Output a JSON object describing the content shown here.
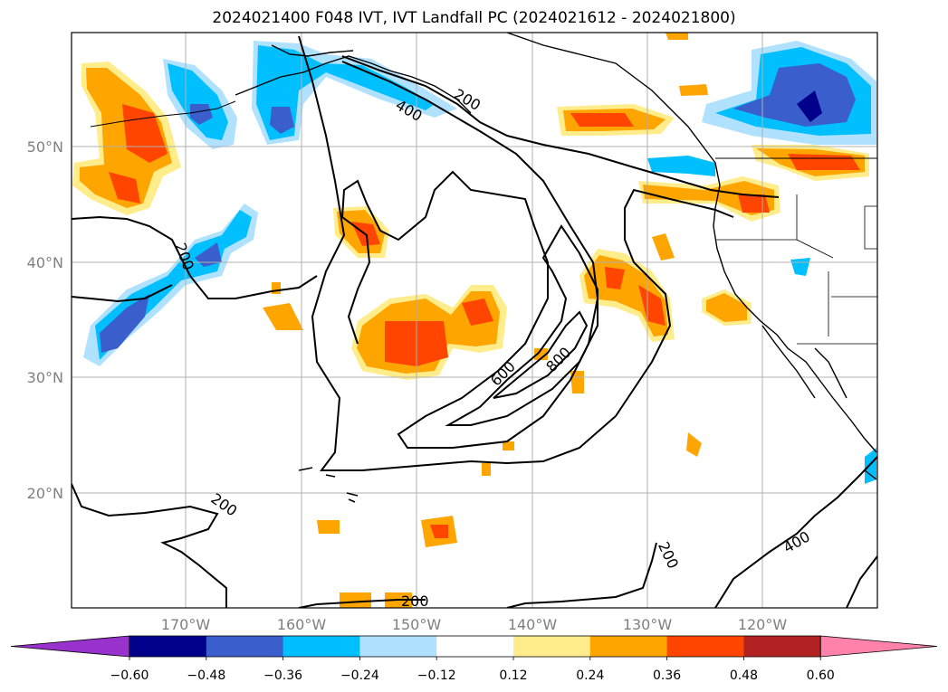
{
  "title": "2024021400 F048 IVT, IVT Landfall PC (2024021612 - 2024021800)",
  "lat_labels": [
    "50°N",
    "40°N",
    "30°N",
    "20°N"
  ],
  "lon_labels": [
    "170°W",
    "160°W",
    "150°W",
    "140°W",
    "130°W",
    "120°W"
  ],
  "contour_labels": [
    "200",
    "400",
    "200",
    "600",
    "800",
    "200",
    "200",
    "400",
    "200"
  ],
  "colorbar": {
    "ticks": [
      "−0.60",
      "−0.48",
      "−0.36",
      "−0.24",
      "−0.12",
      "0.12",
      "0.24",
      "0.36",
      "0.48",
      "0.60"
    ],
    "colors": [
      "#9932cc",
      "#00008b",
      "#3a5fcd",
      "#00bfff",
      "#b0e2ff",
      "#ffffff",
      "#ffec8b",
      "#ffa500",
      "#ff4500",
      "#b22222",
      "#ff82ab"
    ]
  },
  "colors": {
    "pos_low": "#ffec8b",
    "pos_mid": "#ffa500",
    "pos_high": "#ff4500",
    "neg_low": "#b0e2ff",
    "neg_mid": "#00bfff",
    "neg_high": "#3a5fcd",
    "neg_max": "#00008b"
  }
}
